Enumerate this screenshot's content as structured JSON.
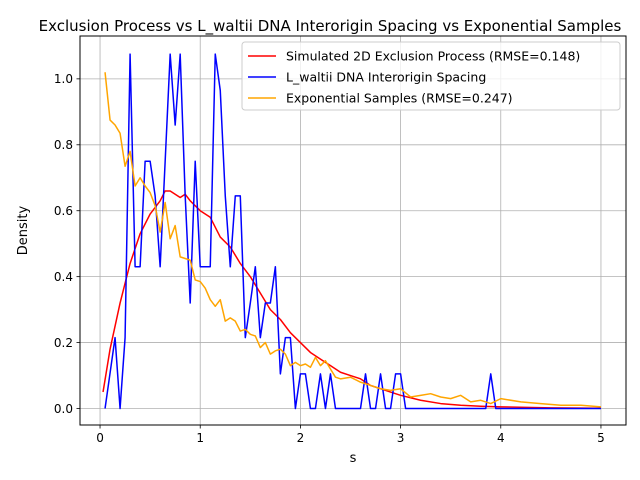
{
  "chart_data": {
    "type": "line",
    "title": "Exclusion Process vs L_waltii DNA Interorigin Spacing vs Exponential Samples",
    "xlabel": "s",
    "ylabel": "Density",
    "xlim": [
      -0.2,
      5.25
    ],
    "ylim": [
      -0.05,
      1.13
    ],
    "xticks": [
      0,
      1,
      2,
      3,
      4,
      5
    ],
    "xtick_labels": [
      "0",
      "1",
      "2",
      "3",
      "4",
      "5"
    ],
    "yticks": [
      0.0,
      0.2,
      0.4,
      0.6,
      0.8,
      1.0
    ],
    "ytick_labels": [
      "0.0",
      "0.2",
      "0.4",
      "0.6",
      "0.8",
      "1.0"
    ],
    "grid": true,
    "legend_position": "top-right",
    "series": [
      {
        "name": "Simulated 2D Exclusion Process (RMSE=0.148)",
        "color": "#ff0000",
        "x": [
          0.03,
          0.1,
          0.2,
          0.3,
          0.4,
          0.5,
          0.6,
          0.65,
          0.7,
          0.8,
          0.85,
          0.9,
          1.0,
          1.1,
          1.2,
          1.3,
          1.4,
          1.5,
          1.6,
          1.7,
          1.8,
          1.9,
          2.0,
          2.1,
          2.2,
          2.3,
          2.4,
          2.5,
          2.6,
          2.7,
          2.8,
          2.9,
          3.0,
          3.2,
          3.4,
          3.6,
          3.8,
          4.0,
          4.5,
          5.0
        ],
        "y": [
          0.05,
          0.18,
          0.32,
          0.44,
          0.53,
          0.59,
          0.63,
          0.66,
          0.66,
          0.64,
          0.65,
          0.63,
          0.6,
          0.58,
          0.52,
          0.49,
          0.44,
          0.4,
          0.35,
          0.3,
          0.27,
          0.23,
          0.2,
          0.17,
          0.15,
          0.13,
          0.11,
          0.1,
          0.09,
          0.07,
          0.06,
          0.05,
          0.04,
          0.025,
          0.015,
          0.01,
          0.007,
          0.005,
          0.002,
          0.001
        ]
      },
      {
        "name": "L_waltii DNA Interorigin Spacing",
        "color": "#0000ff",
        "x": [
          0.05,
          0.15,
          0.2,
          0.25,
          0.3,
          0.35,
          0.4,
          0.45,
          0.5,
          0.55,
          0.6,
          0.65,
          0.7,
          0.75,
          0.8,
          0.85,
          0.9,
          0.95,
          1.0,
          1.05,
          1.1,
          1.15,
          1.2,
          1.25,
          1.3,
          1.35,
          1.4,
          1.45,
          1.5,
          1.55,
          1.6,
          1.65,
          1.7,
          1.75,
          1.8,
          1.85,
          1.9,
          1.95,
          2.0,
          2.05,
          2.1,
          2.15,
          2.2,
          2.25,
          2.3,
          2.35,
          2.4,
          2.45,
          2.5,
          2.55,
          2.6,
          2.65,
          2.7,
          2.75,
          2.8,
          2.85,
          2.9,
          2.95,
          3.0,
          3.05,
          3.1,
          3.5,
          3.85,
          3.9,
          3.95,
          4.0,
          4.5,
          5.0
        ],
        "y": [
          0.0,
          0.215,
          0.0,
          0.215,
          1.075,
          0.43,
          0.43,
          0.75,
          0.75,
          0.645,
          0.43,
          0.75,
          1.075,
          0.86,
          1.075,
          0.645,
          0.32,
          0.75,
          0.43,
          0.43,
          0.43,
          1.075,
          0.965,
          0.645,
          0.43,
          0.645,
          0.645,
          0.215,
          0.32,
          0.43,
          0.215,
          0.32,
          0.32,
          0.43,
          0.105,
          0.215,
          0.215,
          0.0,
          0.105,
          0.105,
          0.0,
          0.0,
          0.105,
          0.0,
          0.105,
          0.0,
          0.0,
          0.0,
          0.0,
          0.0,
          0.0,
          0.105,
          0.0,
          0.0,
          0.105,
          0.0,
          0.0,
          0.105,
          0.105,
          0.0,
          0.0,
          0.0,
          0.0,
          0.105,
          0.0,
          0.0,
          0.0,
          0.0
        ]
      },
      {
        "name": "Exponential Samples (RMSE=0.247)",
        "color": "#ffa500",
        "x": [
          0.05,
          0.1,
          0.15,
          0.2,
          0.25,
          0.3,
          0.35,
          0.4,
          0.45,
          0.5,
          0.55,
          0.6,
          0.65,
          0.7,
          0.75,
          0.8,
          0.85,
          0.9,
          0.95,
          1.0,
          1.05,
          1.1,
          1.15,
          1.2,
          1.25,
          1.3,
          1.35,
          1.4,
          1.45,
          1.5,
          1.55,
          1.6,
          1.65,
          1.7,
          1.75,
          1.8,
          1.85,
          1.9,
          1.95,
          2.0,
          2.05,
          2.1,
          2.15,
          2.2,
          2.25,
          2.3,
          2.35,
          2.4,
          2.5,
          2.6,
          2.7,
          2.8,
          2.9,
          3.0,
          3.1,
          3.2,
          3.3,
          3.4,
          3.5,
          3.6,
          3.7,
          3.8,
          3.9,
          4.0,
          4.2,
          4.4,
          4.6,
          4.8,
          5.0
        ],
        "y": [
          1.02,
          0.875,
          0.86,
          0.835,
          0.735,
          0.78,
          0.675,
          0.7,
          0.675,
          0.655,
          0.615,
          0.535,
          0.625,
          0.515,
          0.555,
          0.46,
          0.455,
          0.45,
          0.39,
          0.385,
          0.365,
          0.33,
          0.31,
          0.33,
          0.265,
          0.275,
          0.265,
          0.235,
          0.24,
          0.225,
          0.22,
          0.185,
          0.2,
          0.165,
          0.175,
          0.18,
          0.165,
          0.13,
          0.14,
          0.13,
          0.135,
          0.125,
          0.155,
          0.13,
          0.145,
          0.12,
          0.095,
          0.09,
          0.095,
          0.08,
          0.07,
          0.06,
          0.055,
          0.06,
          0.035,
          0.04,
          0.045,
          0.035,
          0.03,
          0.04,
          0.02,
          0.025,
          0.015,
          0.03,
          0.02,
          0.015,
          0.01,
          0.01,
          0.005
        ]
      }
    ]
  }
}
